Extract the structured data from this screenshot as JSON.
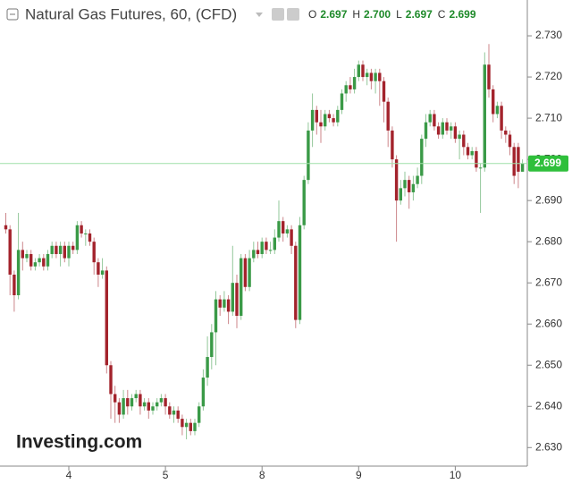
{
  "chart_data": {
    "type": "candlestick",
    "title": "Natural Gas Futures, 60, (CFD)",
    "ohlc_names": [
      "O",
      "H",
      "L",
      "C"
    ],
    "ohlc_labels": [
      "2.697",
      "2.700",
      "2.697",
      "2.699"
    ],
    "last_price_label": "2.699",
    "watermark": "Investing.com",
    "up_color": "#3a9a47",
    "down_color": "#a3232c",
    "price_line_color": "#9fe0a8",
    "ylim": [
      2.6255,
      2.7387
    ],
    "yticks": [
      {
        "value": 2.63,
        "label": "2.630"
      },
      {
        "value": 2.64,
        "label": "2.640"
      },
      {
        "value": 2.65,
        "label": "2.650"
      },
      {
        "value": 2.66,
        "label": "2.660"
      },
      {
        "value": 2.67,
        "label": "2.670"
      },
      {
        "value": 2.68,
        "label": "2.680"
      },
      {
        "value": 2.69,
        "label": "2.690"
      },
      {
        "value": 2.7,
        "label": "2.700"
      },
      {
        "value": 2.71,
        "label": "2.710"
      },
      {
        "value": 2.72,
        "label": "2.720"
      },
      {
        "value": 2.73,
        "label": "2.730"
      }
    ],
    "categories": [
      null,
      null,
      null,
      null,
      null,
      null,
      null,
      null,
      null,
      null,
      null,
      null,
      null,
      null,
      null,
      "4",
      null,
      null,
      null,
      null,
      null,
      null,
      null,
      null,
      null,
      null,
      null,
      null,
      null,
      null,
      null,
      null,
      null,
      null,
      null,
      null,
      null,
      null,
      "5",
      null,
      null,
      null,
      null,
      null,
      null,
      null,
      null,
      null,
      null,
      null,
      null,
      null,
      null,
      null,
      null,
      null,
      null,
      null,
      null,
      null,
      null,
      "8",
      null,
      null,
      null,
      null,
      null,
      null,
      null,
      null,
      null,
      null,
      null,
      null,
      null,
      null,
      null,
      null,
      null,
      null,
      null,
      null,
      null,
      null,
      "9",
      null,
      null,
      null,
      null,
      null,
      null,
      null,
      null,
      null,
      null,
      null,
      null,
      null,
      null,
      null,
      null,
      null,
      null,
      null,
      null,
      null,
      null,
      "10",
      null,
      null,
      null,
      null,
      null,
      null,
      null,
      null,
      null,
      null,
      null,
      null,
      null,
      null,
      null,
      null
    ],
    "open": [
      2.684,
      2.683,
      2.672,
      2.667,
      2.678,
      2.676,
      2.677,
      2.674,
      2.675,
      2.676,
      2.674,
      2.677,
      2.679,
      2.677,
      2.679,
      2.676,
      2.679,
      2.678,
      2.684,
      2.682,
      2.682,
      2.68,
      2.675,
      2.672,
      2.673,
      2.65,
      2.643,
      2.641,
      2.638,
      2.642,
      2.64,
      2.642,
      2.643,
      2.64,
      2.641,
      2.639,
      2.64,
      2.641,
      2.642,
      2.64,
      2.638,
      2.639,
      2.637,
      2.635,
      2.636,
      2.634,
      2.636,
      2.64,
      2.647,
      2.652,
      2.658,
      2.666,
      2.664,
      2.666,
      2.663,
      2.67,
      2.662,
      2.676,
      2.669,
      2.676,
      2.678,
      2.677,
      2.68,
      2.678,
      2.678,
      2.681,
      2.685,
      2.682,
      2.683,
      2.679,
      2.661,
      2.684,
      2.695,
      2.707,
      2.712,
      2.709,
      2.708,
      2.711,
      2.71,
      2.709,
      2.712,
      2.716,
      2.718,
      2.717,
      2.72,
      2.723,
      2.72,
      2.721,
      2.719,
      2.721,
      2.719,
      2.714,
      2.707,
      2.7,
      2.69,
      2.693,
      2.695,
      2.692,
      2.694,
      2.696,
      2.705,
      2.709,
      2.711,
      2.708,
      2.706,
      2.709,
      2.707,
      2.708,
      2.705,
      2.706,
      2.703,
      2.701,
      2.702,
      2.698,
      2.698,
      2.723,
      2.717,
      2.711,
      2.713,
      2.707,
      2.706,
      2.703,
      2.703,
      2.697
    ],
    "high": [
      2.687,
      2.684,
      2.673,
      2.687,
      2.68,
      2.678,
      2.678,
      2.676,
      2.677,
      2.677,
      2.678,
      2.68,
      2.68,
      2.68,
      2.68,
      2.68,
      2.68,
      2.685,
      2.685,
      2.683,
      2.683,
      2.681,
      2.676,
      2.676,
      2.674,
      2.651,
      2.645,
      2.642,
      2.644,
      2.644,
      2.643,
      2.644,
      2.644,
      2.642,
      2.642,
      2.641,
      2.642,
      2.643,
      2.643,
      2.641,
      2.64,
      2.64,
      2.638,
      2.637,
      2.637,
      2.637,
      2.641,
      2.649,
      2.657,
      2.66,
      2.668,
      2.667,
      2.668,
      2.667,
      2.679,
      2.672,
      2.677,
      2.677,
      2.678,
      2.68,
      2.68,
      2.681,
      2.681,
      2.68,
      2.683,
      2.69,
      2.686,
      2.684,
      2.684,
      2.68,
      2.686,
      2.696,
      2.709,
      2.716,
      2.713,
      2.712,
      2.712,
      2.712,
      2.711,
      2.713,
      2.717,
      2.719,
      2.72,
      2.722,
      2.724,
      2.724,
      2.722,
      2.722,
      2.722,
      2.722,
      2.72,
      2.715,
      2.708,
      2.701,
      2.695,
      2.697,
      2.696,
      2.696,
      2.698,
      2.706,
      2.711,
      2.712,
      2.712,
      2.709,
      2.71,
      2.71,
      2.709,
      2.709,
      2.707,
      2.707,
      2.704,
      2.703,
      2.703,
      2.699,
      2.726,
      2.728,
      2.718,
      2.714,
      2.714,
      2.708,
      2.707,
      2.704,
      2.704,
      2.7
    ],
    "low": [
      2.682,
      2.667,
      2.663,
      2.666,
      2.673,
      2.675,
      2.673,
      2.673,
      2.674,
      2.673,
      2.673,
      2.676,
      2.676,
      2.674,
      2.675,
      2.674,
      2.677,
      2.677,
      2.681,
      2.679,
      2.679,
      2.672,
      2.669,
      2.671,
      2.648,
      2.637,
      2.636,
      2.636,
      2.637,
      2.638,
      2.639,
      2.641,
      2.638,
      2.639,
      2.637,
      2.638,
      2.639,
      2.64,
      2.638,
      2.637,
      2.636,
      2.636,
      2.633,
      2.632,
      2.633,
      2.633,
      2.635,
      2.639,
      2.645,
      2.649,
      2.65,
      2.662,
      2.663,
      2.66,
      2.662,
      2.659,
      2.661,
      2.668,
      2.668,
      2.675,
      2.676,
      2.676,
      2.677,
      2.677,
      2.677,
      2.68,
      2.68,
      2.681,
      2.677,
      2.659,
      2.66,
      2.683,
      2.694,
      2.703,
      2.706,
      2.704,
      2.707,
      2.709,
      2.708,
      2.708,
      2.711,
      2.714,
      2.716,
      2.716,
      2.719,
      2.719,
      2.718,
      2.717,
      2.716,
      2.713,
      2.709,
      2.703,
      2.698,
      2.68,
      2.689,
      2.691,
      2.688,
      2.69,
      2.693,
      2.694,
      2.703,
      2.708,
      2.707,
      2.705,
      2.705,
      2.706,
      2.705,
      2.704,
      2.7,
      2.701,
      2.7,
      2.7,
      2.697,
      2.687,
      2.697,
      2.715,
      2.709,
      2.71,
      2.705,
      2.704,
      2.701,
      2.694,
      2.693,
      2.697
    ],
    "close": [
      2.683,
      2.672,
      2.667,
      2.678,
      2.676,
      2.677,
      2.674,
      2.675,
      2.676,
      2.674,
      2.677,
      2.679,
      2.677,
      2.679,
      2.676,
      2.679,
      2.678,
      2.684,
      2.682,
      2.682,
      2.68,
      2.675,
      2.672,
      2.673,
      2.65,
      2.643,
      2.641,
      2.638,
      2.642,
      2.64,
      2.642,
      2.643,
      2.64,
      2.641,
      2.639,
      2.64,
      2.641,
      2.642,
      2.64,
      2.638,
      2.639,
      2.637,
      2.635,
      2.636,
      2.634,
      2.636,
      2.64,
      2.647,
      2.652,
      2.658,
      2.666,
      2.664,
      2.666,
      2.663,
      2.67,
      2.662,
      2.676,
      2.669,
      2.676,
      2.678,
      2.677,
      2.68,
      2.678,
      2.678,
      2.681,
      2.685,
      2.682,
      2.683,
      2.679,
      2.661,
      2.684,
      2.695,
      2.707,
      2.712,
      2.709,
      2.708,
      2.711,
      2.71,
      2.709,
      2.712,
      2.716,
      2.718,
      2.717,
      2.72,
      2.723,
      2.72,
      2.721,
      2.719,
      2.721,
      2.719,
      2.714,
      2.707,
      2.7,
      2.69,
      2.693,
      2.695,
      2.692,
      2.694,
      2.696,
      2.705,
      2.709,
      2.711,
      2.708,
      2.706,
      2.709,
      2.707,
      2.708,
      2.705,
      2.706,
      2.703,
      2.701,
      2.702,
      2.698,
      2.698,
      2.723,
      2.717,
      2.711,
      2.713,
      2.707,
      2.706,
      2.703,
      2.696,
      2.697,
      2.699
    ]
  }
}
